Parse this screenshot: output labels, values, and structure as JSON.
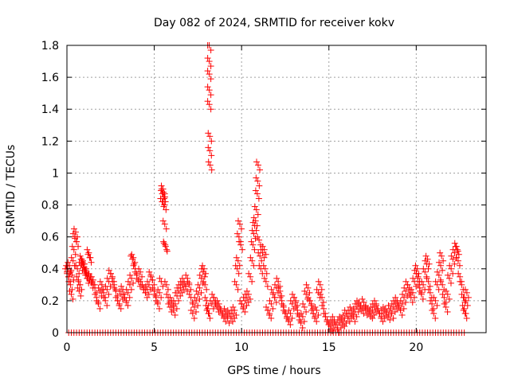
{
  "chart_data": {
    "type": "scatter",
    "title": "Day 082 of 2024, SRMTID for receiver kokv",
    "xlabel": "GPS time / hours",
    "ylabel": "SRMTID / TECUs",
    "xlim": [
      0,
      24
    ],
    "ylim": [
      0,
      1.8
    ],
    "xticks": [
      0,
      5,
      10,
      15,
      20
    ],
    "xtick_labels": [
      "0",
      "5",
      "10",
      "15",
      "20"
    ],
    "yticks": [
      0,
      0.2,
      0.4,
      0.6,
      0.8,
      1,
      1.2,
      1.4,
      1.6,
      1.8
    ],
    "ytick_labels": [
      "0",
      "0.2",
      "0.4",
      "0.6",
      "0.8",
      "1",
      "1.2",
      "1.4",
      "1.6",
      "1.8"
    ],
    "grid": true,
    "marker": "+",
    "series": [
      {
        "name": "SRMTID",
        "color": "#ff0000",
        "points": [
          [
            0.0,
            0.38
          ],
          [
            0.05,
            0.4
          ],
          [
            0.1,
            0.35
          ],
          [
            0.15,
            0.42
          ],
          [
            0.2,
            0.3
          ],
          [
            0.25,
            0.24
          ],
          [
            0.3,
            0.36
          ],
          [
            0.35,
            0.45
          ],
          [
            0.4,
            0.52
          ],
          [
            0.45,
            0.6
          ],
          [
            0.5,
            0.63
          ],
          [
            0.55,
            0.57
          ],
          [
            0.6,
            0.4
          ],
          [
            0.65,
            0.33
          ],
          [
            0.7,
            0.26
          ],
          [
            0.75,
            0.3
          ],
          [
            0.8,
            0.42
          ],
          [
            0.85,
            0.46
          ],
          [
            0.9,
            0.44
          ],
          [
            0.95,
            0.41
          ],
          [
            1.0,
            0.43
          ],
          [
            1.05,
            0.39
          ],
          [
            1.1,
            0.37
          ],
          [
            1.15,
            0.34
          ],
          [
            1.2,
            0.36
          ],
          [
            1.25,
            0.5
          ],
          [
            1.3,
            0.47
          ],
          [
            1.35,
            0.35
          ],
          [
            1.4,
            0.31
          ],
          [
            1.5,
            0.33
          ],
          [
            1.6,
            0.28
          ],
          [
            1.7,
            0.22
          ],
          [
            1.8,
            0.18
          ],
          [
            1.9,
            0.26
          ],
          [
            2.0,
            0.3
          ],
          [
            2.1,
            0.25
          ],
          [
            2.2,
            0.2
          ],
          [
            2.3,
            0.27
          ],
          [
            2.4,
            0.32
          ],
          [
            2.5,
            0.37
          ],
          [
            2.6,
            0.35
          ],
          [
            2.7,
            0.3
          ],
          [
            2.8,
            0.26
          ],
          [
            2.9,
            0.2
          ],
          [
            3.0,
            0.18
          ],
          [
            3.1,
            0.24
          ],
          [
            3.2,
            0.27
          ],
          [
            3.3,
            0.22
          ],
          [
            3.4,
            0.2
          ],
          [
            3.5,
            0.25
          ],
          [
            3.6,
            0.3
          ],
          [
            3.7,
            0.34
          ],
          [
            3.75,
            0.46
          ],
          [
            3.8,
            0.47
          ],
          [
            3.9,
            0.4
          ],
          [
            4.0,
            0.36
          ],
          [
            4.1,
            0.32
          ],
          [
            4.2,
            0.38
          ],
          [
            4.3,
            0.3
          ],
          [
            4.4,
            0.28
          ],
          [
            4.5,
            0.25
          ],
          [
            4.6,
            0.27
          ],
          [
            4.7,
            0.3
          ],
          [
            4.8,
            0.36
          ],
          [
            4.9,
            0.33
          ],
          [
            5.0,
            0.26
          ],
          [
            5.1,
            0.22
          ],
          [
            5.2,
            0.18
          ],
          [
            5.3,
            0.25
          ],
          [
            5.4,
            0.32
          ],
          [
            5.45,
            0.82
          ],
          [
            5.48,
            0.87
          ],
          [
            5.5,
            0.9
          ],
          [
            5.52,
            0.88
          ],
          [
            5.55,
            0.85
          ],
          [
            5.58,
            0.8
          ],
          [
            5.6,
            0.68
          ],
          [
            5.62,
            0.55
          ],
          [
            5.65,
            0.54
          ],
          [
            5.7,
            0.3
          ],
          [
            5.8,
            0.22
          ],
          [
            5.9,
            0.16
          ],
          [
            6.0,
            0.2
          ],
          [
            6.1,
            0.14
          ],
          [
            6.2,
            0.18
          ],
          [
            6.3,
            0.23
          ],
          [
            6.4,
            0.26
          ],
          [
            6.5,
            0.28
          ],
          [
            6.6,
            0.3
          ],
          [
            6.7,
            0.32
          ],
          [
            6.8,
            0.29
          ],
          [
            6.9,
            0.34
          ],
          [
            7.0,
            0.3
          ],
          [
            7.1,
            0.22
          ],
          [
            7.2,
            0.12
          ],
          [
            7.3,
            0.16
          ],
          [
            7.4,
            0.2
          ],
          [
            7.5,
            0.24
          ],
          [
            7.6,
            0.28
          ],
          [
            7.7,
            0.34
          ],
          [
            7.8,
            0.38
          ],
          [
            7.85,
            0.4
          ],
          [
            7.9,
            0.3
          ],
          [
            8.0,
            0.2
          ],
          [
            8.05,
            0.15
          ],
          [
            8.1,
            0.12
          ],
          [
            8.15,
            1.8
          ],
          [
            8.15,
            1.7
          ],
          [
            8.15,
            1.62
          ],
          [
            8.15,
            1.52
          ],
          [
            8.15,
            1.43
          ],
          [
            8.18,
            1.23
          ],
          [
            8.18,
            1.14
          ],
          [
            8.2,
            1.05
          ],
          [
            8.3,
            0.18
          ],
          [
            8.4,
            0.22
          ],
          [
            8.5,
            0.2
          ],
          [
            8.6,
            0.16
          ],
          [
            8.7,
            0.18
          ],
          [
            8.8,
            0.14
          ],
          [
            8.9,
            0.12
          ],
          [
            9.0,
            0.1
          ],
          [
            9.1,
            0.13
          ],
          [
            9.2,
            0.09
          ],
          [
            9.3,
            0.12
          ],
          [
            9.4,
            0.1
          ],
          [
            9.5,
            0.12
          ],
          [
            9.6,
            0.14
          ],
          [
            9.7,
            0.3
          ],
          [
            9.75,
            0.4
          ],
          [
            9.8,
            0.45
          ],
          [
            9.85,
            0.6
          ],
          [
            9.9,
            0.68
          ],
          [
            9.95,
            0.55
          ],
          [
            10.0,
            0.18
          ],
          [
            10.1,
            0.16
          ],
          [
            10.2,
            0.2
          ],
          [
            10.3,
            0.22
          ],
          [
            10.4,
            0.24
          ],
          [
            10.5,
            0.35
          ],
          [
            10.6,
            0.45
          ],
          [
            10.65,
            0.55
          ],
          [
            10.7,
            0.62
          ],
          [
            10.75,
            0.67
          ],
          [
            10.8,
            0.7
          ],
          [
            10.85,
            0.77
          ],
          [
            10.9,
            0.87
          ],
          [
            10.92,
            0.95
          ],
          [
            10.95,
            1.05
          ],
          [
            11.0,
            0.58
          ],
          [
            11.05,
            0.48
          ],
          [
            11.1,
            0.4
          ],
          [
            11.2,
            0.5
          ],
          [
            11.3,
            0.52
          ],
          [
            11.35,
            0.4
          ],
          [
            11.4,
            0.32
          ],
          [
            11.5,
            0.14
          ],
          [
            11.6,
            0.12
          ],
          [
            11.7,
            0.18
          ],
          [
            11.8,
            0.25
          ],
          [
            11.9,
            0.22
          ],
          [
            12.0,
            0.28
          ],
          [
            12.1,
            0.32
          ],
          [
            12.2,
            0.26
          ],
          [
            12.3,
            0.2
          ],
          [
            12.4,
            0.16
          ],
          [
            12.5,
            0.12
          ],
          [
            12.6,
            0.1
          ],
          [
            12.7,
            0.08
          ],
          [
            12.8,
            0.12
          ],
          [
            12.9,
            0.18
          ],
          [
            13.0,
            0.22
          ],
          [
            13.1,
            0.2
          ],
          [
            13.2,
            0.14
          ],
          [
            13.3,
            0.1
          ],
          [
            13.4,
            0.06
          ],
          [
            13.5,
            0.1
          ],
          [
            13.6,
            0.16
          ],
          [
            13.7,
            0.24
          ],
          [
            13.8,
            0.28
          ],
          [
            13.9,
            0.2
          ],
          [
            14.0,
            0.18
          ],
          [
            14.1,
            0.12
          ],
          [
            14.2,
            0.1
          ],
          [
            14.3,
            0.14
          ],
          [
            14.4,
            0.25
          ],
          [
            14.5,
            0.3
          ],
          [
            14.6,
            0.22
          ],
          [
            14.7,
            0.15
          ],
          [
            14.8,
            0.1
          ],
          [
            14.9,
            0.08
          ],
          [
            15.0,
            0.05
          ],
          [
            15.1,
            0.04
          ],
          [
            15.2,
            0.06
          ],
          [
            15.3,
            0.08
          ],
          [
            15.4,
            0.05
          ],
          [
            15.5,
            0.03
          ],
          [
            15.6,
            0.06
          ],
          [
            15.7,
            0.08
          ],
          [
            15.8,
            0.07
          ],
          [
            15.9,
            0.09
          ],
          [
            16.0,
            0.12
          ],
          [
            16.1,
            0.1
          ],
          [
            16.2,
            0.12
          ],
          [
            16.3,
            0.14
          ],
          [
            16.4,
            0.1
          ],
          [
            16.5,
            0.13
          ],
          [
            16.6,
            0.16
          ],
          [
            16.7,
            0.18
          ],
          [
            16.8,
            0.17
          ],
          [
            16.9,
            0.15
          ],
          [
            17.0,
            0.19
          ],
          [
            17.1,
            0.14
          ],
          [
            17.2,
            0.15
          ],
          [
            17.3,
            0.13
          ],
          [
            17.4,
            0.12
          ],
          [
            17.5,
            0.14
          ],
          [
            17.6,
            0.16
          ],
          [
            17.7,
            0.18
          ],
          [
            17.8,
            0.15
          ],
          [
            17.9,
            0.12
          ],
          [
            18.0,
            0.1
          ],
          [
            18.1,
            0.12
          ],
          [
            18.2,
            0.14
          ],
          [
            18.3,
            0.13
          ],
          [
            18.4,
            0.11
          ],
          [
            18.5,
            0.15
          ],
          [
            18.6,
            0.12
          ],
          [
            18.7,
            0.16
          ],
          [
            18.8,
            0.18
          ],
          [
            18.9,
            0.2
          ],
          [
            19.0,
            0.17
          ],
          [
            19.1,
            0.14
          ],
          [
            19.2,
            0.18
          ],
          [
            19.3,
            0.22
          ],
          [
            19.4,
            0.26
          ],
          [
            19.5,
            0.3
          ],
          [
            19.6,
            0.28
          ],
          [
            19.7,
            0.22
          ],
          [
            19.8,
            0.25
          ],
          [
            19.9,
            0.32
          ],
          [
            20.0,
            0.37
          ],
          [
            20.05,
            0.4
          ],
          [
            20.1,
            0.35
          ],
          [
            20.2,
            0.28
          ],
          [
            20.3,
            0.24
          ],
          [
            20.4,
            0.3
          ],
          [
            20.5,
            0.38
          ],
          [
            20.6,
            0.43
          ],
          [
            20.65,
            0.46
          ],
          [
            20.7,
            0.32
          ],
          [
            20.8,
            0.25
          ],
          [
            20.9,
            0.18
          ],
          [
            21.0,
            0.12
          ],
          [
            21.1,
            0.2
          ],
          [
            21.2,
            0.3
          ],
          [
            21.3,
            0.36
          ],
          [
            21.4,
            0.42
          ],
          [
            21.45,
            0.48
          ],
          [
            21.5,
            0.3
          ],
          [
            21.6,
            0.22
          ],
          [
            21.7,
            0.16
          ],
          [
            21.8,
            0.24
          ],
          [
            21.9,
            0.34
          ],
          [
            22.0,
            0.4
          ],
          [
            22.1,
            0.46
          ],
          [
            22.2,
            0.5
          ],
          [
            22.3,
            0.54
          ],
          [
            22.35,
            0.52
          ],
          [
            22.4,
            0.45
          ],
          [
            22.5,
            0.35
          ],
          [
            22.6,
            0.3
          ],
          [
            22.7,
            0.22
          ],
          [
            22.75,
            0.15
          ],
          [
            22.8,
            0.12
          ],
          [
            22.85,
            0.2
          ],
          [
            22.9,
            0.25
          ]
        ],
        "zero_baseline_x": [
          0.1,
          0.25,
          0.4,
          0.55,
          0.7,
          0.85,
          1.0,
          1.15,
          1.3,
          1.45,
          1.6,
          1.75,
          1.9,
          2.05,
          2.2,
          2.35,
          2.5,
          2.65,
          2.8,
          2.95,
          3.1,
          3.25,
          3.4,
          3.55,
          3.7,
          3.85,
          4.0,
          4.15,
          4.3,
          4.45,
          4.6,
          4.75,
          4.9,
          5.05,
          5.2,
          5.35,
          5.5,
          5.65,
          5.8,
          5.95,
          6.1,
          6.25,
          6.4,
          6.55,
          6.7,
          6.85,
          7.0,
          7.15,
          7.3,
          7.45,
          7.6,
          7.75,
          7.9,
          8.05,
          8.2,
          8.35,
          8.5,
          8.65,
          8.8,
          8.95,
          9.1,
          9.25,
          9.4,
          9.55,
          9.7,
          9.85,
          10.0,
          10.15,
          10.3,
          10.45,
          10.6,
          10.75,
          10.9,
          11.05,
          11.2,
          11.35,
          11.5,
          11.65,
          11.8,
          11.95,
          12.1,
          12.25,
          12.4,
          12.55,
          12.7,
          12.85,
          13.0,
          13.15,
          13.3,
          13.45,
          13.6,
          13.75,
          13.9,
          14.05,
          14.2,
          14.35,
          14.5,
          14.65,
          14.8,
          14.95,
          15.1,
          15.25,
          15.4,
          15.55,
          15.7,
          15.85,
          16.0,
          16.15,
          16.3,
          16.45,
          16.6,
          16.75,
          16.9,
          17.05,
          17.2,
          17.35,
          17.5,
          17.65,
          17.8,
          17.95,
          18.1,
          18.25,
          18.4,
          18.55,
          18.7,
          18.85,
          19.0,
          19.15,
          19.3,
          19.45,
          19.6,
          19.75,
          19.9,
          20.05,
          20.2,
          20.35,
          20.5,
          20.65,
          20.8,
          20.95,
          21.1,
          21.25,
          21.4,
          21.55,
          21.7,
          21.85,
          22.0,
          22.15,
          22.3,
          22.45,
          22.6,
          22.75
        ]
      }
    ]
  }
}
